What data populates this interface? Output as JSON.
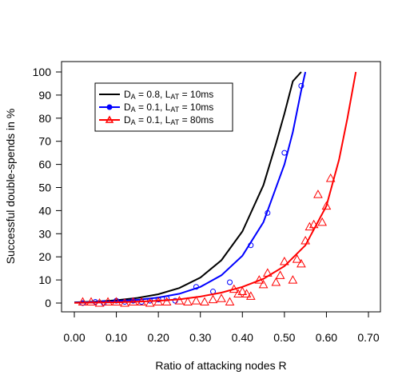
{
  "chart_data": {
    "type": "scatter",
    "title": "",
    "xlabel": "Ratio of attacking nodes R",
    "ylabel": "Successful double-spends in %",
    "xlim": [
      0.0,
      0.7
    ],
    "ylim": [
      0,
      100
    ],
    "xticks": [
      "0.00",
      "0.10",
      "0.20",
      "0.30",
      "0.40",
      "0.50",
      "0.60",
      "0.70"
    ],
    "xtick_values": [
      0.0,
      0.1,
      0.2,
      0.3,
      0.4,
      0.5,
      0.6,
      0.7
    ],
    "yticks": [
      "0",
      "10",
      "20",
      "30",
      "40",
      "50",
      "60",
      "70",
      "80",
      "90",
      "100"
    ],
    "ytick_values": [
      0,
      10,
      20,
      30,
      40,
      50,
      60,
      70,
      80,
      90,
      100
    ],
    "grid": false,
    "legend_position": "top-left",
    "series": [
      {
        "name_main": "D",
        "name_sub1": "A",
        "name_mid": " = 0.8, L",
        "name_sub2": "AT",
        "name_end": " = 10ms",
        "color": "#000000",
        "marker": "none",
        "curve_x": [
          0.0,
          0.05,
          0.1,
          0.15,
          0.2,
          0.25,
          0.3,
          0.35,
          0.4,
          0.45,
          0.48,
          0.5,
          0.52,
          0.54
        ],
        "curve_y": [
          0.3,
          0.6,
          1.2,
          2.2,
          3.8,
          6.5,
          11,
          18.5,
          31,
          51,
          69,
          82,
          96,
          100
        ],
        "points_x": [],
        "points_y": []
      },
      {
        "name_main": "D",
        "name_sub1": "A",
        "name_mid": " = 0.1, L",
        "name_sub2": "AT",
        "name_end": " = 10ms",
        "color": "#0000ff",
        "marker": "circle",
        "curve_x": [
          0.0,
          0.05,
          0.1,
          0.15,
          0.2,
          0.25,
          0.3,
          0.35,
          0.4,
          0.45,
          0.5,
          0.52,
          0.54,
          0.55
        ],
        "curve_y": [
          0.2,
          0.4,
          0.8,
          1.4,
          2.4,
          4.0,
          7.0,
          12,
          20.5,
          35,
          60,
          74,
          92,
          100
        ],
        "points_x": [
          0.02,
          0.05,
          0.07,
          0.1,
          0.12,
          0.14,
          0.16,
          0.18,
          0.2,
          0.22,
          0.24,
          0.29,
          0.33,
          0.37,
          0.42,
          0.46,
          0.5,
          0.54
        ],
        "points_y": [
          0,
          0.5,
          0,
          1,
          0.5,
          1,
          0.5,
          1,
          1.5,
          2,
          1,
          7,
          5,
          9,
          25,
          39,
          65,
          94
        ]
      },
      {
        "name_main": "D",
        "name_sub1": "A",
        "name_mid": " = 0.1, L",
        "name_sub2": "AT",
        "name_end": " = 80ms",
        "color": "#ff0000",
        "marker": "triangle",
        "curve_x": [
          0.0,
          0.05,
          0.1,
          0.15,
          0.2,
          0.25,
          0.3,
          0.35,
          0.4,
          0.45,
          0.5,
          0.55,
          0.6,
          0.63,
          0.65,
          0.67
        ],
        "curve_y": [
          0.1,
          0.2,
          0.3,
          0.6,
          1.0,
          1.6,
          2.8,
          4.5,
          7.0,
          10.5,
          16,
          25,
          42,
          62,
          80,
          100
        ],
        "points_x": [
          0.02,
          0.04,
          0.06,
          0.08,
          0.1,
          0.12,
          0.14,
          0.16,
          0.18,
          0.2,
          0.22,
          0.25,
          0.27,
          0.29,
          0.31,
          0.33,
          0.35,
          0.37,
          0.38,
          0.39,
          0.4,
          0.41,
          0.42,
          0.44,
          0.45,
          0.46,
          0.48,
          0.49,
          0.5,
          0.52,
          0.53,
          0.54,
          0.55,
          0.56,
          0.57,
          0.58,
          0.59,
          0.6,
          0.61
        ],
        "points_y": [
          0.5,
          0.5,
          0,
          0.5,
          0.5,
          0,
          0.5,
          0.5,
          0,
          0.5,
          0.5,
          1,
          0.5,
          1,
          0.5,
          1.5,
          2,
          0.5,
          6,
          4,
          5,
          4,
          3,
          10,
          8,
          13,
          9,
          12,
          18,
          10,
          19,
          17,
          27,
          33,
          34,
          47,
          35,
          42,
          54
        ]
      }
    ]
  }
}
